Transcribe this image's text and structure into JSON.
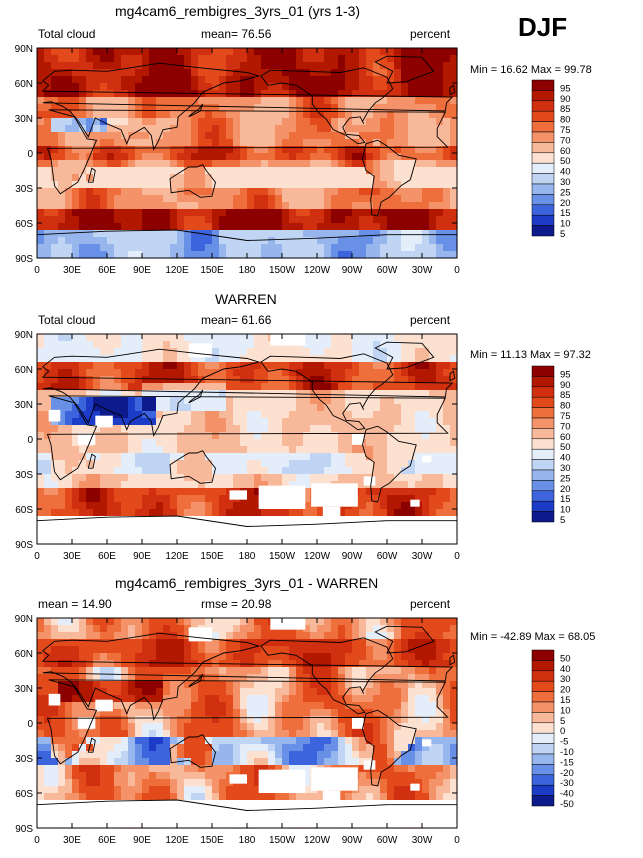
{
  "season": "DJF",
  "chart_data": [
    {
      "type": "heatmap",
      "title": "mg4cam6_rembigres_3yrs_01 (yrs 1-3)",
      "left_label": "Total cloud",
      "center_label": "mean=  76.56",
      "right_label": "percent",
      "stats": "Min =  16.62 Max =  99.78",
      "xticks": [
        "0",
        "30E",
        "60E",
        "90E",
        "120E",
        "150E",
        "180",
        "150W",
        "120W",
        "90W",
        "60W",
        "30W",
        "0"
      ],
      "yticks": [
        "90N",
        "60N",
        "30N",
        "0",
        "30S",
        "60S",
        "90S"
      ],
      "levels": [
        "95",
        "90",
        "85",
        "80",
        "75",
        "70",
        "60",
        "50",
        "40",
        "30",
        "25",
        "20",
        "15",
        "10",
        "5"
      ],
      "colors": [
        "#8c0000",
        "#b21800",
        "#d03010",
        "#e24a1c",
        "#ee6e3c",
        "#f4926a",
        "#f8b89a",
        "#fce0d0",
        "#e4eefa",
        "#c0d4f4",
        "#98b6ee",
        "#6890e6",
        "#3c64dc",
        "#1c3cc8",
        "#0c1a8c"
      ],
      "field": {
        "base": 74,
        "kind": "model"
      }
    },
    {
      "type": "heatmap",
      "title": "WARREN",
      "left_label": "Total cloud",
      "center_label": "mean=  61.66",
      "right_label": "percent",
      "stats": "Min =  11.13 Max =  97.32",
      "xticks": [
        "0",
        "30E",
        "60E",
        "90E",
        "120E",
        "150E",
        "180",
        "150W",
        "120W",
        "90W",
        "60W",
        "30W",
        "0"
      ],
      "yticks": [
        "90N",
        "60N",
        "30N",
        "0",
        "30S",
        "60S",
        "90S"
      ],
      "levels": [
        "95",
        "90",
        "85",
        "80",
        "75",
        "70",
        "60",
        "50",
        "40",
        "30",
        "25",
        "20",
        "15",
        "10",
        "5"
      ],
      "colors": [
        "#8c0000",
        "#b21800",
        "#d03010",
        "#e24a1c",
        "#ee6e3c",
        "#f4926a",
        "#f8b89a",
        "#fce0d0",
        "#e4eefa",
        "#c0d4f4",
        "#98b6ee",
        "#6890e6",
        "#3c64dc",
        "#1c3cc8",
        "#0c1a8c"
      ],
      "field": {
        "base": 60,
        "kind": "obs"
      }
    },
    {
      "type": "heatmap",
      "title": "mg4cam6_rembigres_3yrs_01 - WARREN",
      "left_label": "mean =  14.90",
      "center_label": "rmse =  20.98",
      "right_label": "percent",
      "stats": "Min = -42.89 Max =  68.05",
      "xticks": [
        "0",
        "30E",
        "60E",
        "90E",
        "120E",
        "150E",
        "180",
        "150W",
        "120W",
        "90W",
        "60W",
        "30W",
        "0"
      ],
      "yticks": [
        "90N",
        "60N",
        "30N",
        "0",
        "30S",
        "60S",
        "90S"
      ],
      "levels": [
        "50",
        "40",
        "30",
        "20",
        "15",
        "10",
        "5",
        "0",
        "-5",
        "-10",
        "-15",
        "-20",
        "-30",
        "-40",
        "-50"
      ],
      "colors": [
        "#8c0000",
        "#b21800",
        "#d03010",
        "#e24a1c",
        "#ee6e3c",
        "#f4926a",
        "#f8b89a",
        "#fce0d0",
        "#e4eefa",
        "#c0d4f4",
        "#98b6ee",
        "#6890e6",
        "#3c64dc",
        "#1c3cc8",
        "#0c1a8c"
      ],
      "field": {
        "base": 15,
        "kind": "diff"
      }
    }
  ]
}
